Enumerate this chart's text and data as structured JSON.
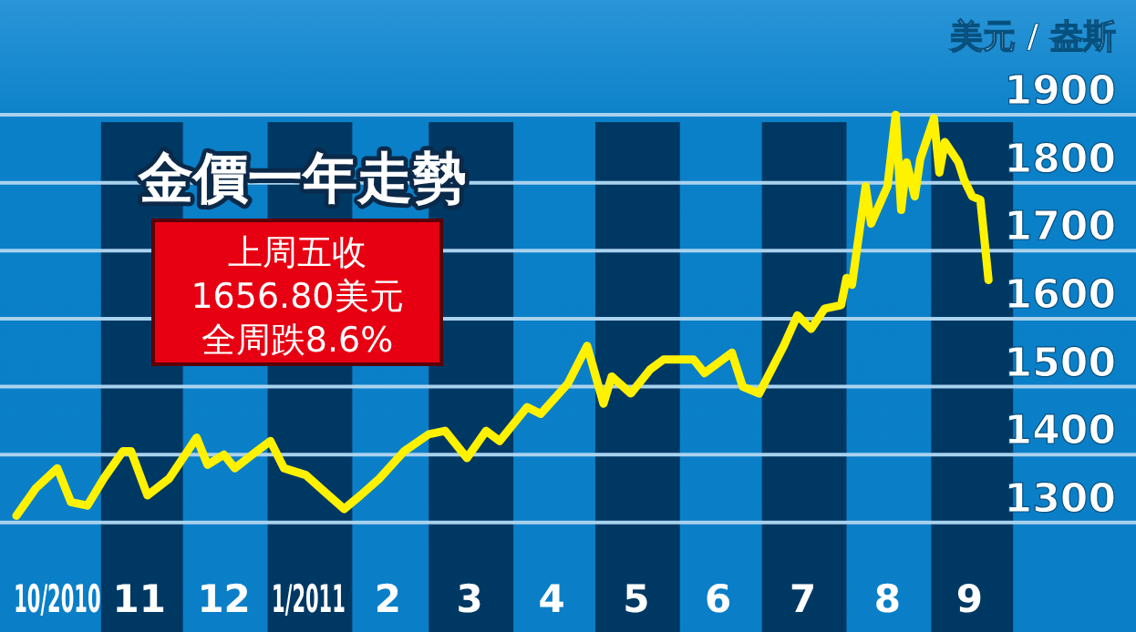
{
  "chart_data": {
    "type": "line",
    "title": "金價一年走勢",
    "ylabel": "美元 / 盎斯",
    "annotations": [
      "上周五收",
      "1656.80美元",
      "全周跌8.6%"
    ],
    "x": [
      "2010-10-01",
      "2010-10-08",
      "2010-10-16",
      "2010-10-21",
      "2010-10-27",
      "2010-11-02",
      "2010-11-09",
      "2010-11-12",
      "2010-11-18",
      "2010-11-26",
      "2010-12-06",
      "2010-12-10",
      "2010-12-16",
      "2010-12-20",
      "2010-12-28",
      "2011-01-02",
      "2011-01-07",
      "2011-01-15",
      "2011-01-22",
      "2011-01-29",
      "2011-02-04",
      "2011-02-11",
      "2011-02-20",
      "2011-03-01",
      "2011-03-07",
      "2011-03-15",
      "2011-03-22",
      "2011-03-27",
      "2011-04-06",
      "2011-04-11",
      "2011-04-21",
      "2011-04-28",
      "2011-05-04",
      "2011-05-07",
      "2011-05-14",
      "2011-05-21",
      "2011-05-26",
      "2011-06-06",
      "2011-06-10",
      "2011-06-20",
      "2011-06-24",
      "2011-06-30",
      "2011-07-09",
      "2011-07-14",
      "2011-07-19",
      "2011-07-24",
      "2011-07-30",
      "2011-08-01",
      "2011-08-03",
      "2011-08-08",
      "2011-08-10",
      "2011-08-16",
      "2011-08-19",
      "2011-08-21",
      "2011-08-23",
      "2011-08-26",
      "2011-08-28",
      "2011-09-02",
      "2011-09-04",
      "2011-09-06",
      "2011-09-11",
      "2011-09-13",
      "2011-09-16",
      "2011-09-19",
      "2011-09-22"
    ],
    "series": [
      {
        "color": "#fff200",
        "values": [
          1310,
          1350,
          1380,
          1330,
          1325,
          1365,
          1405,
          1405,
          1340,
          1365,
          1425,
          1385,
          1400,
          1380,
          1405,
          1420,
          1380,
          1370,
          1345,
          1320,
          1340,
          1365,
          1405,
          1430,
          1435,
          1395,
          1435,
          1420,
          1470,
          1460,
          1505,
          1560,
          1475,
          1515,
          1490,
          1525,
          1540,
          1540,
          1520,
          1550,
          1500,
          1490,
          1560,
          1605,
          1585,
          1615,
          1620,
          1660,
          1650,
          1795,
          1740,
          1795,
          1900,
          1760,
          1830,
          1780,
          1835,
          1895,
          1815,
          1860,
          1830,
          1805,
          1780,
          1775,
          1657
        ]
      }
    ],
    "xlim": [
      "2010-09-25",
      "2011-11-15"
    ],
    "ylim": [
      1139,
      2069
    ],
    "xticks": [
      {
        "value": "2010-10-16",
        "label": "10/2010"
      },
      {
        "value": "2010-11-15",
        "label": "11"
      },
      {
        "value": "2010-12-16",
        "label": "12"
      },
      {
        "value": "2011-01-16",
        "label": "1/2011"
      },
      {
        "value": "2011-02-14",
        "label": "2"
      },
      {
        "value": "2011-03-16",
        "label": "3"
      },
      {
        "value": "2011-04-15",
        "label": "4"
      },
      {
        "value": "2011-05-16",
        "label": "5"
      },
      {
        "value": "2011-06-15",
        "label": "6"
      },
      {
        "value": "2011-07-16",
        "label": "7"
      },
      {
        "value": "2011-08-16",
        "label": "8"
      },
      {
        "value": "2011-09-15",
        "label": "9"
      }
    ],
    "yticks": [
      1300,
      1400,
      1500,
      1600,
      1700,
      1800,
      1900
    ],
    "grid": "y",
    "marker": "none",
    "line_style": "solid",
    "bands": [
      {
        "axis": "x",
        "from": "2010-11-01",
        "to": "2010-12-01",
        "color": "#003864"
      },
      {
        "axis": "x",
        "from": "2011-01-01",
        "to": "2011-02-01",
        "color": "#003864"
      },
      {
        "axis": "x",
        "from": "2011-03-01",
        "to": "2011-04-01",
        "color": "#003864"
      },
      {
        "axis": "x",
        "from": "2011-05-01",
        "to": "2011-06-01",
        "color": "#003864"
      },
      {
        "axis": "x",
        "from": "2011-07-01",
        "to": "2011-08-01",
        "color": "#003864"
      },
      {
        "axis": "x",
        "from": "2011-09-01",
        "to": "2011-10-01",
        "color": "#003864"
      }
    ]
  }
}
